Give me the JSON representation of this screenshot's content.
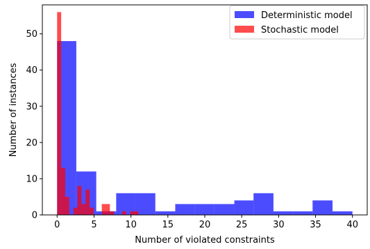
{
  "chart_data": {
    "type": "histogram",
    "xlabel": "Number of violated constraints",
    "ylabel": "Number of instances",
    "xlim": [
      -2,
      42
    ],
    "ylim": [
      0,
      58
    ],
    "xticks": [
      0,
      5,
      10,
      15,
      20,
      25,
      30,
      35,
      40
    ],
    "yticks": [
      0,
      10,
      20,
      30,
      40,
      50
    ],
    "grid": false,
    "legend_position": "top-right",
    "series": [
      {
        "name": "Deterministic model",
        "color": "#0000ff",
        "opacity": 0.7,
        "bins": [
          {
            "x0": 0.0,
            "x1": 0.5,
            "count": 48
          },
          {
            "x0": 0.5,
            "x1": 2.6,
            "count": 48
          },
          {
            "x0": 2.6,
            "x1": 5.3,
            "count": 12
          },
          {
            "x0": 5.3,
            "x1": 8.0,
            "count": 1
          },
          {
            "x0": 8.0,
            "x1": 10.6,
            "count": 6
          },
          {
            "x0": 10.6,
            "x1": 13.3,
            "count": 6
          },
          {
            "x0": 13.3,
            "x1": 16.0,
            "count": 1
          },
          {
            "x0": 16.0,
            "x1": 18.6,
            "count": 3
          },
          {
            "x0": 18.6,
            "x1": 21.3,
            "count": 3
          },
          {
            "x0": 21.3,
            "x1": 24.0,
            "count": 3
          },
          {
            "x0": 24.0,
            "x1": 26.6,
            "count": 4
          },
          {
            "x0": 26.6,
            "x1": 29.3,
            "count": 6
          },
          {
            "x0": 29.3,
            "x1": 32.0,
            "count": 1
          },
          {
            "x0": 32.0,
            "x1": 34.6,
            "count": 1
          },
          {
            "x0": 34.6,
            "x1": 37.3,
            "count": 4
          },
          {
            "x0": 37.3,
            "x1": 40.0,
            "count": 1
          }
        ]
      },
      {
        "name": "Stochastic model",
        "color": "#ff0000",
        "opacity": 0.7,
        "bins": [
          {
            "x0": 0.0,
            "x1": 0.55,
            "count": 56
          },
          {
            "x0": 0.55,
            "x1": 1.1,
            "count": 13
          },
          {
            "x0": 1.1,
            "x1": 1.65,
            "count": 5
          },
          {
            "x0": 1.65,
            "x1": 2.2,
            "count": 0
          },
          {
            "x0": 2.2,
            "x1": 2.75,
            "count": 2
          },
          {
            "x0": 2.75,
            "x1": 3.3,
            "count": 8
          },
          {
            "x0": 3.3,
            "x1": 3.85,
            "count": 3
          },
          {
            "x0": 3.85,
            "x1": 4.4,
            "count": 7
          },
          {
            "x0": 4.4,
            "x1": 4.95,
            "count": 2
          },
          {
            "x0": 4.95,
            "x1": 5.5,
            "count": 0
          },
          {
            "x0": 5.5,
            "x1": 6.05,
            "count": 0
          },
          {
            "x0": 6.05,
            "x1": 6.6,
            "count": 3
          },
          {
            "x0": 6.6,
            "x1": 7.15,
            "count": 3
          },
          {
            "x0": 7.15,
            "x1": 7.7,
            "count": 1
          },
          {
            "x0": 7.7,
            "x1": 8.25,
            "count": 0
          },
          {
            "x0": 8.25,
            "x1": 8.8,
            "count": 0
          },
          {
            "x0": 8.8,
            "x1": 9.35,
            "count": 1
          },
          {
            "x0": 9.35,
            "x1": 9.9,
            "count": 0
          },
          {
            "x0": 9.9,
            "x1": 10.45,
            "count": 1
          },
          {
            "x0": 10.45,
            "x1": 11.0,
            "count": 1
          }
        ]
      }
    ]
  }
}
